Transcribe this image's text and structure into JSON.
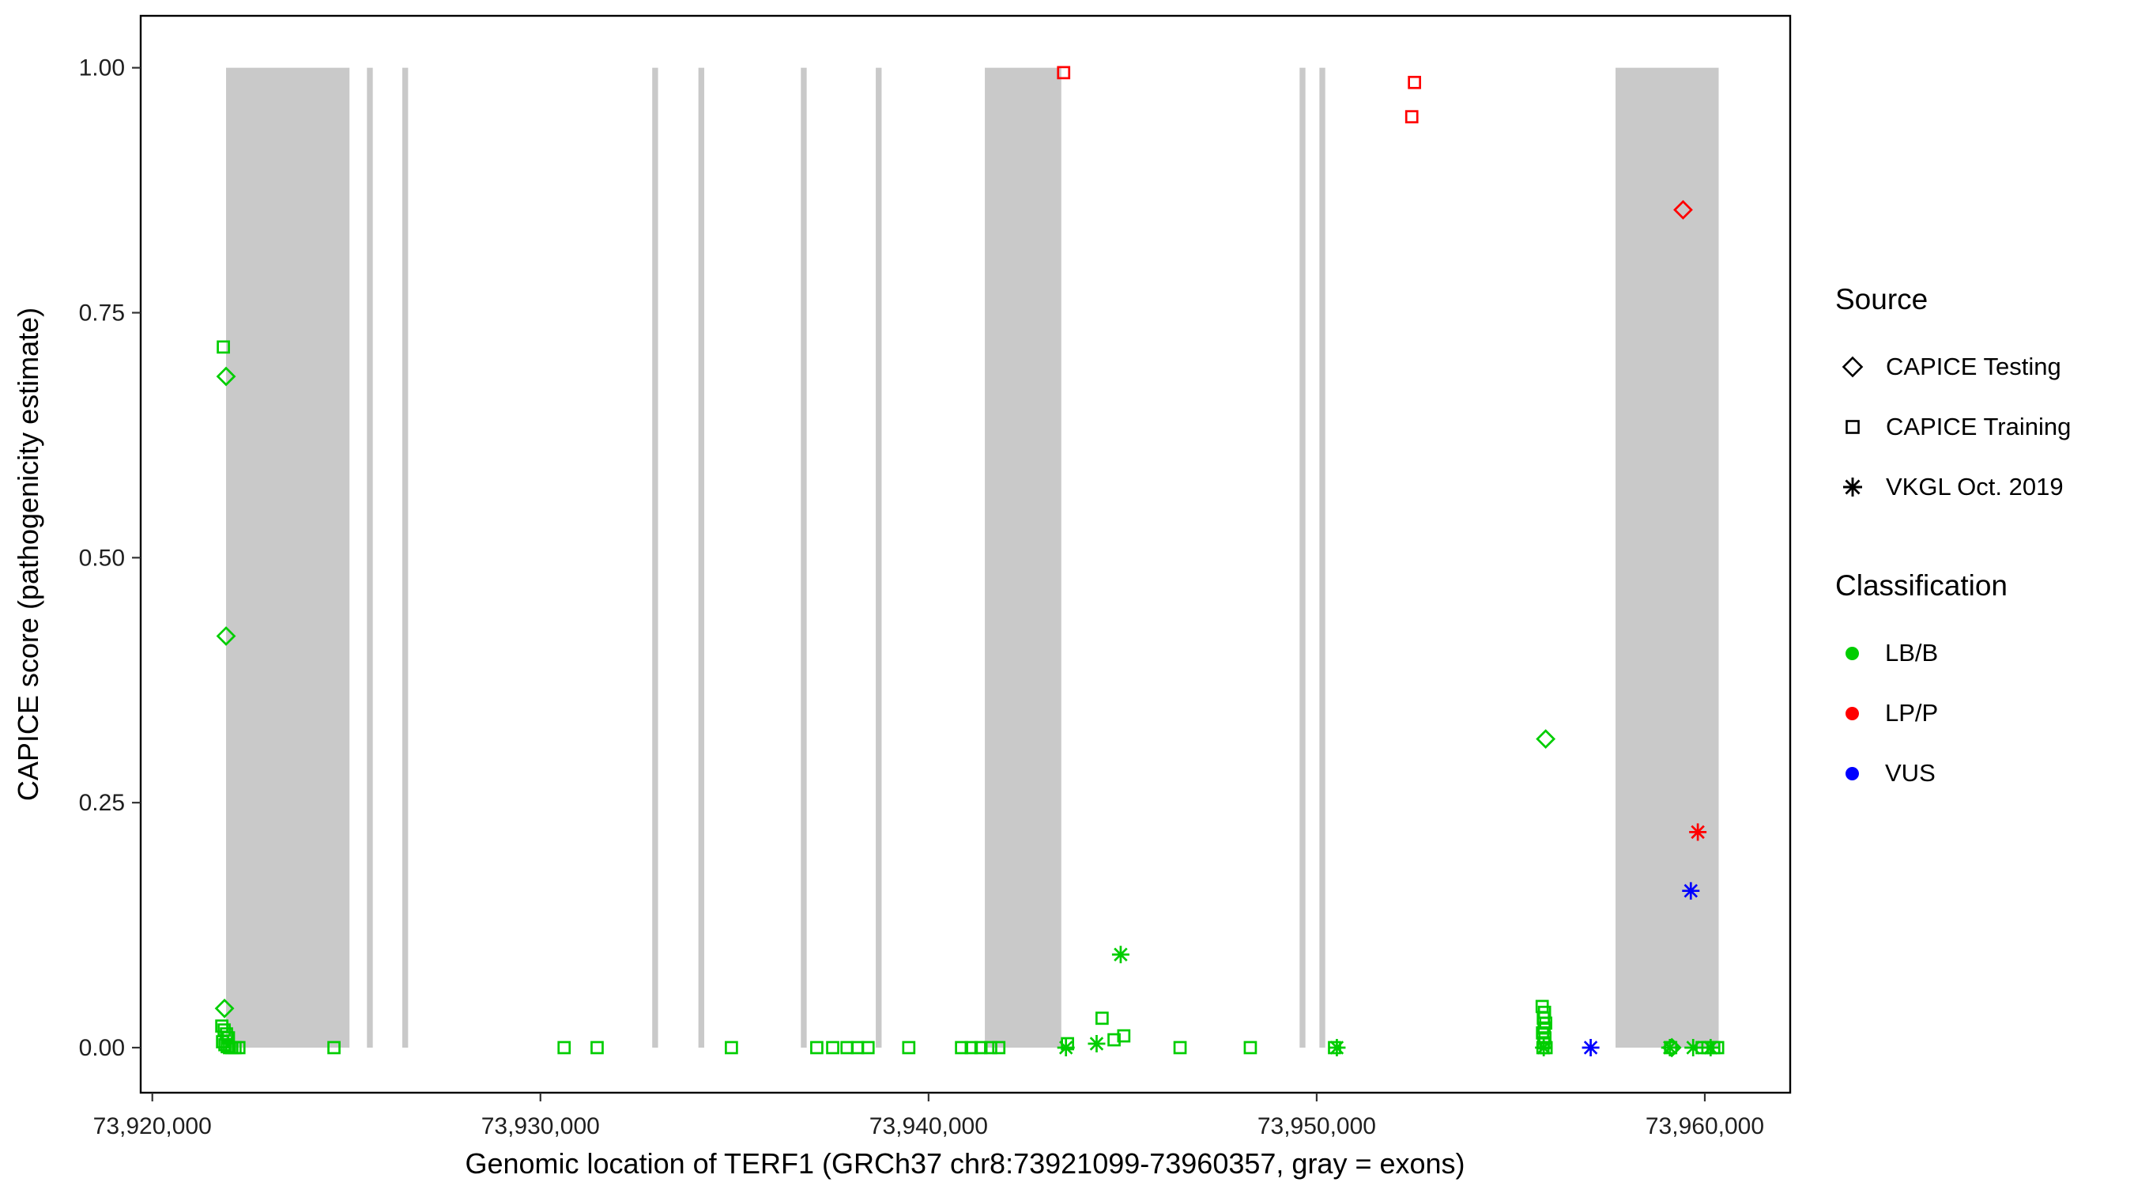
{
  "legend": {
    "source_title": "Source",
    "source_items": [
      {
        "label": "CAPICE Testing",
        "shape": "diamond"
      },
      {
        "label": "CAPICE Training",
        "shape": "square"
      },
      {
        "label": "VKGL Oct. 2019",
        "shape": "asterisk"
      }
    ],
    "classification_title": "Classification",
    "classification_items": [
      {
        "label": "LB/B",
        "color": "#00CD00"
      },
      {
        "label": "LP/P",
        "color": "#FF0000"
      },
      {
        "label": "VUS",
        "color": "#0000FF"
      }
    ]
  },
  "chart_data": {
    "type": "scatter",
    "title": "",
    "xlabel": "Genomic location of TERF1 (GRCh37 chr8:73921099-73960357, gray = exons)",
    "ylabel": "CAPICE score (pathogenicity estimate)",
    "x_domain": [
      73919700,
      73962200
    ],
    "y_domain": [
      -0.046,
      1.053
    ],
    "x_ticks": [
      {
        "value": 73920000,
        "label": "73,920,000"
      },
      {
        "value": 73930000,
        "label": "73,930,000"
      },
      {
        "value": 73940000,
        "label": "73,940,000"
      },
      {
        "value": 73950000,
        "label": "73,950,000"
      },
      {
        "value": 73960000,
        "label": "73,960,000"
      }
    ],
    "y_ticks": [
      {
        "value": 0.0,
        "label": "0.00"
      },
      {
        "value": 0.25,
        "label": "0.25"
      },
      {
        "value": 0.5,
        "label": "0.50"
      },
      {
        "value": 0.75,
        "label": "0.75"
      },
      {
        "value": 1.0,
        "label": "1.00"
      }
    ],
    "exon_color": "#C9C9C9",
    "exons": [
      [
        73921900,
        73925080
      ],
      [
        73925530,
        73925680
      ],
      [
        73926440,
        73926590
      ],
      [
        73932880,
        73933030
      ],
      [
        73934070,
        73934220
      ],
      [
        73936710,
        73936860
      ],
      [
        73938640,
        73938790
      ],
      [
        73941450,
        73943420
      ],
      [
        73949560,
        73949710
      ],
      [
        73950070,
        73950220
      ],
      [
        73957700,
        73960357
      ]
    ],
    "series": [
      {
        "source": "CAPICE Training",
        "classification": "LB/B",
        "shape": "square",
        "color": "#00CD00",
        "points": [
          [
            73921830,
            0.715
          ],
          [
            73921790,
            0.022
          ],
          [
            73921850,
            0.018
          ],
          [
            73921910,
            0.014
          ],
          [
            73921960,
            0.01
          ],
          [
            73921810,
            0.006
          ],
          [
            73921870,
            0.003
          ],
          [
            73921930,
            0.001
          ],
          [
            73921990,
            0
          ],
          [
            73922050,
            0
          ],
          [
            73922130,
            0
          ],
          [
            73922230,
            0
          ],
          [
            73924680,
            0
          ],
          [
            73930610,
            0
          ],
          [
            73931460,
            0
          ],
          [
            73934920,
            0
          ],
          [
            73937120,
            0
          ],
          [
            73937530,
            0
          ],
          [
            73937900,
            0
          ],
          [
            73938170,
            0
          ],
          [
            73938440,
            0
          ],
          [
            73939490,
            0
          ],
          [
            73940850,
            0
          ],
          [
            73941100,
            0
          ],
          [
            73941350,
            0
          ],
          [
            73941600,
            0
          ],
          [
            73941810,
            0
          ],
          [
            73943580,
            0.004
          ],
          [
            73944470,
            0.03
          ],
          [
            73944780,
            0.008
          ],
          [
            73945030,
            0.012
          ],
          [
            73946480,
            0
          ],
          [
            73948290,
            0
          ],
          [
            73950460,
            0
          ],
          [
            73955810,
            0.042
          ],
          [
            73955870,
            0.036
          ],
          [
            73955840,
            0.03
          ],
          [
            73955900,
            0.025
          ],
          [
            73955860,
            0.02
          ],
          [
            73955820,
            0.015
          ],
          [
            73955880,
            0.01
          ],
          [
            73955850,
            0.005
          ],
          [
            73955830,
            0
          ],
          [
            73955910,
            0
          ],
          [
            73959120,
            0
          ],
          [
            73959930,
            0
          ],
          [
            73960080,
            0
          ],
          [
            73960230,
            0
          ],
          [
            73960330,
            0
          ]
        ]
      },
      {
        "source": "CAPICE Testing",
        "classification": "LB/B",
        "shape": "diamond",
        "color": "#00CD00",
        "points": [
          [
            73921900,
            0.685
          ],
          [
            73921900,
            0.42
          ],
          [
            73921860,
            0.04
          ],
          [
            73955900,
            0.315
          ],
          [
            73959150,
            0
          ]
        ]
      },
      {
        "source": "VKGL Oct. 2019",
        "classification": "LB/B",
        "shape": "asterisk",
        "color": "#00CD00",
        "points": [
          [
            73943540,
            0
          ],
          [
            73944330,
            0.004
          ],
          [
            73944950,
            0.095
          ],
          [
            73950520,
            0
          ],
          [
            73955850,
            0
          ],
          [
            73959100,
            0
          ],
          [
            73959700,
            0
          ],
          [
            73960150,
            0
          ]
        ]
      },
      {
        "source": "CAPICE Training",
        "classification": "LP/P",
        "shape": "square",
        "color": "#FF0000",
        "points": [
          [
            73943480,
            0.995
          ],
          [
            73952520,
            0.985
          ],
          [
            73952450,
            0.95
          ]
        ]
      },
      {
        "source": "CAPICE Testing",
        "classification": "LP/P",
        "shape": "diamond",
        "color": "#FF0000",
        "points": [
          [
            73959440,
            0.855
          ]
        ]
      },
      {
        "source": "VKGL Oct. 2019",
        "classification": "LP/P",
        "shape": "asterisk",
        "color": "#FF0000",
        "points": [
          [
            73959820,
            0.22
          ]
        ]
      },
      {
        "source": "VKGL Oct. 2019",
        "classification": "VUS",
        "shape": "asterisk",
        "color": "#0000FF",
        "points": [
          [
            73957060,
            0
          ],
          [
            73959640,
            0.16
          ]
        ]
      }
    ]
  }
}
